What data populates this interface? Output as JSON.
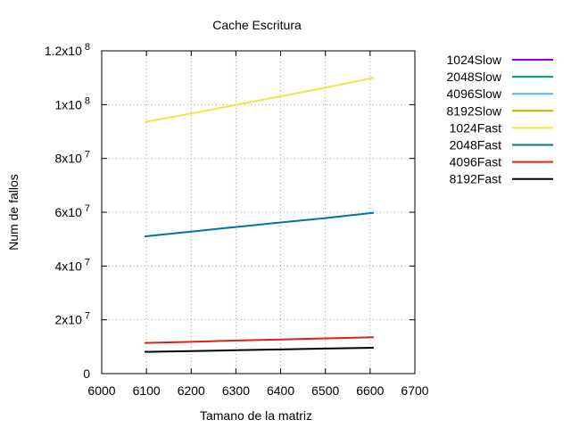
{
  "chart_data": {
    "type": "line",
    "title": "Cache Escritura",
    "xlabel": "Tamano de la matriz",
    "ylabel": "Num de fallos",
    "xlim": [
      6000,
      6700
    ],
    "ylim": [
      0,
      120000000
    ],
    "xticks": [
      6000,
      6100,
      6200,
      6300,
      6400,
      6500,
      6600,
      6700
    ],
    "xtick_labels": [
      "6000",
      "6100",
      "6200",
      "6300",
      "6400",
      "6500",
      "6600",
      "6700"
    ],
    "yticks": [
      {
        "value": 0,
        "mant": "0",
        "exp": ""
      },
      {
        "value": 20000000,
        "mant": "2x10",
        "exp": "7"
      },
      {
        "value": 40000000,
        "mant": "4x10",
        "exp": "7"
      },
      {
        "value": 60000000,
        "mant": "6x10",
        "exp": "7"
      },
      {
        "value": 80000000,
        "mant": "8x10",
        "exp": "7"
      },
      {
        "value": 100000000,
        "mant": "1x10",
        "exp": "8"
      },
      {
        "value": 120000000,
        "mant": "1.2x10",
        "exp": "8"
      }
    ],
    "grid": true,
    "legend_position": "outside-right",
    "series": [
      {
        "name": "1024Slow",
        "color": "#9400d3",
        "x": [],
        "y": []
      },
      {
        "name": "2048Slow",
        "color": "#009e73",
        "x": [],
        "y": []
      },
      {
        "name": "4096Slow",
        "color": "#56b4e9",
        "x": [],
        "y": []
      },
      {
        "name": "8192Slow",
        "color": "#e69f00",
        "x": [],
        "y": []
      },
      {
        "name": "1024Fast",
        "color": "#f0e442",
        "x": [
          6096,
          6200,
          6300,
          6400,
          6500,
          6608
        ],
        "y": [
          93500000,
          96700000,
          99900000,
          103100000,
          106300000,
          110000000
        ]
      },
      {
        "name": "2048Fast",
        "color": "#0072b2",
        "x": [
          6096,
          6200,
          6300,
          6400,
          6500,
          6608
        ],
        "y": [
          51000000,
          52800000,
          54500000,
          56200000,
          57800000,
          59800000
        ]
      },
      {
        "name": "4096Fast",
        "color": "#e51e10",
        "x": [
          6096,
          6200,
          6300,
          6400,
          6500,
          6608
        ],
        "y": [
          11400000,
          11800000,
          12300000,
          12700000,
          13100000,
          13500000
        ]
      },
      {
        "name": "8192Fast",
        "color": "#000000",
        "x": [
          6096,
          6200,
          6300,
          6400,
          6500,
          6608
        ],
        "y": [
          8100000,
          8400000,
          8700000,
          9000000,
          9300000,
          9600000
        ]
      }
    ]
  }
}
